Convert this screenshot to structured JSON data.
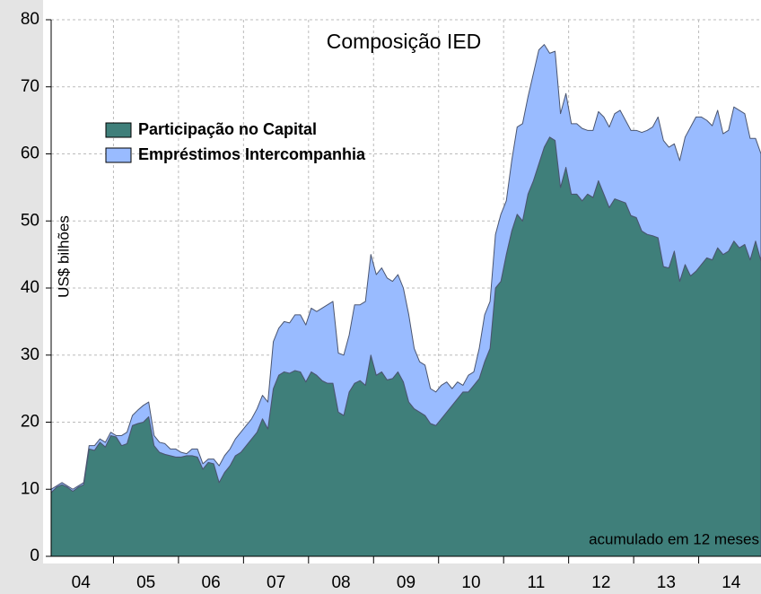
{
  "chart_data": {
    "type": "stacked-area",
    "title": "Composição IED",
    "y_label": "US$ bilhões",
    "annotation": "acumulado em 12 meses",
    "categories": [
      null,
      null,
      null,
      null,
      null,
      null,
      "04",
      null,
      null,
      null,
      null,
      null,
      null,
      null,
      null,
      null,
      null,
      null,
      "05",
      null,
      null,
      null,
      null,
      null,
      null,
      null,
      null,
      null,
      null,
      null,
      "06",
      null,
      null,
      null,
      null,
      null,
      null,
      null,
      null,
      null,
      null,
      null,
      "07",
      null,
      null,
      null,
      null,
      null,
      null,
      null,
      null,
      null,
      null,
      null,
      "08",
      null,
      null,
      null,
      null,
      null,
      null,
      null,
      null,
      null,
      null,
      null,
      "09",
      null,
      null,
      null,
      null,
      null,
      null,
      null,
      null,
      null,
      null,
      null,
      "10",
      null,
      null,
      null,
      null,
      null,
      null,
      null,
      null,
      null,
      null,
      null,
      "11",
      null,
      null,
      null,
      null,
      null,
      null,
      null,
      null,
      null,
      null,
      null,
      "12",
      null,
      null,
      null,
      null,
      null,
      null,
      null,
      null,
      null,
      null,
      null,
      "13",
      null,
      null,
      null,
      null,
      null,
      null,
      null,
      null,
      null,
      null,
      null,
      "14",
      null,
      null,
      null,
      null,
      null
    ],
    "series": [
      {
        "name": "Participação no Capital",
        "color": "#3f7f7a",
        "values": [
          9.5,
          10.3,
          10.7,
          10.3,
          9.7,
          10.3,
          10.7,
          16,
          15.8,
          17,
          16.3,
          18,
          17.8,
          16.5,
          16.8,
          19.5,
          19.8,
          20,
          20.8,
          16.5,
          15.5,
          15.2,
          15,
          14.8,
          14.8,
          15,
          15,
          14.8,
          13,
          14,
          13.8,
          11,
          12.5,
          13.5,
          15,
          15.5,
          16.5,
          17.5,
          18.5,
          20.5,
          19,
          25,
          27,
          27.5,
          27.3,
          27.7,
          27.5,
          26,
          27.5,
          27,
          26.2,
          25.8,
          25.8,
          21.5,
          21,
          24.5,
          25.8,
          26.2,
          25.5,
          30,
          27,
          27.5,
          26.3,
          26.5,
          27.5,
          26,
          23,
          22,
          21.5,
          21,
          19.8,
          19.5,
          20.5,
          21.5,
          22.5,
          23.5,
          24.5,
          24.5,
          25.5,
          26.5,
          29,
          31,
          40,
          41,
          45,
          48.5,
          51,
          50,
          54,
          56,
          58.5,
          61,
          62.5,
          62,
          55,
          58,
          54,
          54,
          53,
          54,
          53.5,
          56,
          54,
          52,
          53.3,
          53,
          52.7,
          50.8,
          50.5,
          48.5,
          48,
          47.8,
          47.5,
          43.2,
          43,
          45.5,
          41,
          43.5,
          41.8,
          42.5,
          43.5,
          44.5,
          44.2,
          46,
          45,
          45.5,
          47,
          46,
          46.5,
          44.2,
          47,
          44
        ]
      },
      {
        "name": "Empréstimos Intercompanhia",
        "color": "#99bbff",
        "values": [
          0.5,
          0.2,
          0.3,
          0.2,
          0.3,
          0.2,
          0.3,
          0.5,
          0.7,
          0.5,
          0.7,
          0.5,
          0.2,
          1.5,
          1.7,
          1.5,
          2.0,
          2.5,
          2.2,
          1.5,
          1.5,
          1.6,
          1.0,
          1.2,
          0.7,
          0.3,
          1.0,
          1.2,
          0.8,
          0.5,
          0.7,
          2.5,
          2.5,
          2.5,
          2.5,
          3.0,
          3.0,
          3.0,
          3.5,
          3.5,
          4.0,
          7.0,
          7.0,
          7.5,
          7.5,
          8.3,
          8.5,
          8.5,
          9.5,
          9.5,
          10.8,
          11.7,
          12.2,
          8.8,
          9.0,
          8.5,
          11.7,
          11.3,
          12.5,
          15.0,
          15.0,
          15.5,
          15.2,
          14.5,
          14.5,
          14.0,
          13.0,
          9.0,
          7.5,
          7.5,
          5.2,
          5.0,
          5.0,
          4.5,
          2.5,
          2.5,
          1.0,
          2.5,
          2.0,
          4.5,
          7.0,
          7.0,
          8.0,
          10.0,
          8.0,
          10.5,
          13.0,
          14.5,
          14.5,
          16.0,
          17.0,
          15.3,
          12.5,
          13.3,
          11.0,
          11.0,
          10.5,
          10.5,
          10.8,
          9.5,
          10.0,
          10.3,
          11.5,
          12.0,
          12.7,
          13.5,
          12.3,
          12.7,
          13.0,
          14.7,
          15.5,
          16.2,
          18.0,
          18.8,
          18.0,
          16.0,
          18.0,
          19.0,
          22.2,
          23.0,
          22.0,
          20.5,
          20.0,
          20.5,
          18.0,
          18.0,
          20.0,
          20.5,
          19.5,
          18.1,
          15.3,
          16.0
        ]
      }
    ],
    "ylim": [
      0,
      80
    ],
    "yticks": [
      0,
      10,
      20,
      30,
      40,
      50,
      60,
      70,
      80
    ],
    "grid": true
  }
}
